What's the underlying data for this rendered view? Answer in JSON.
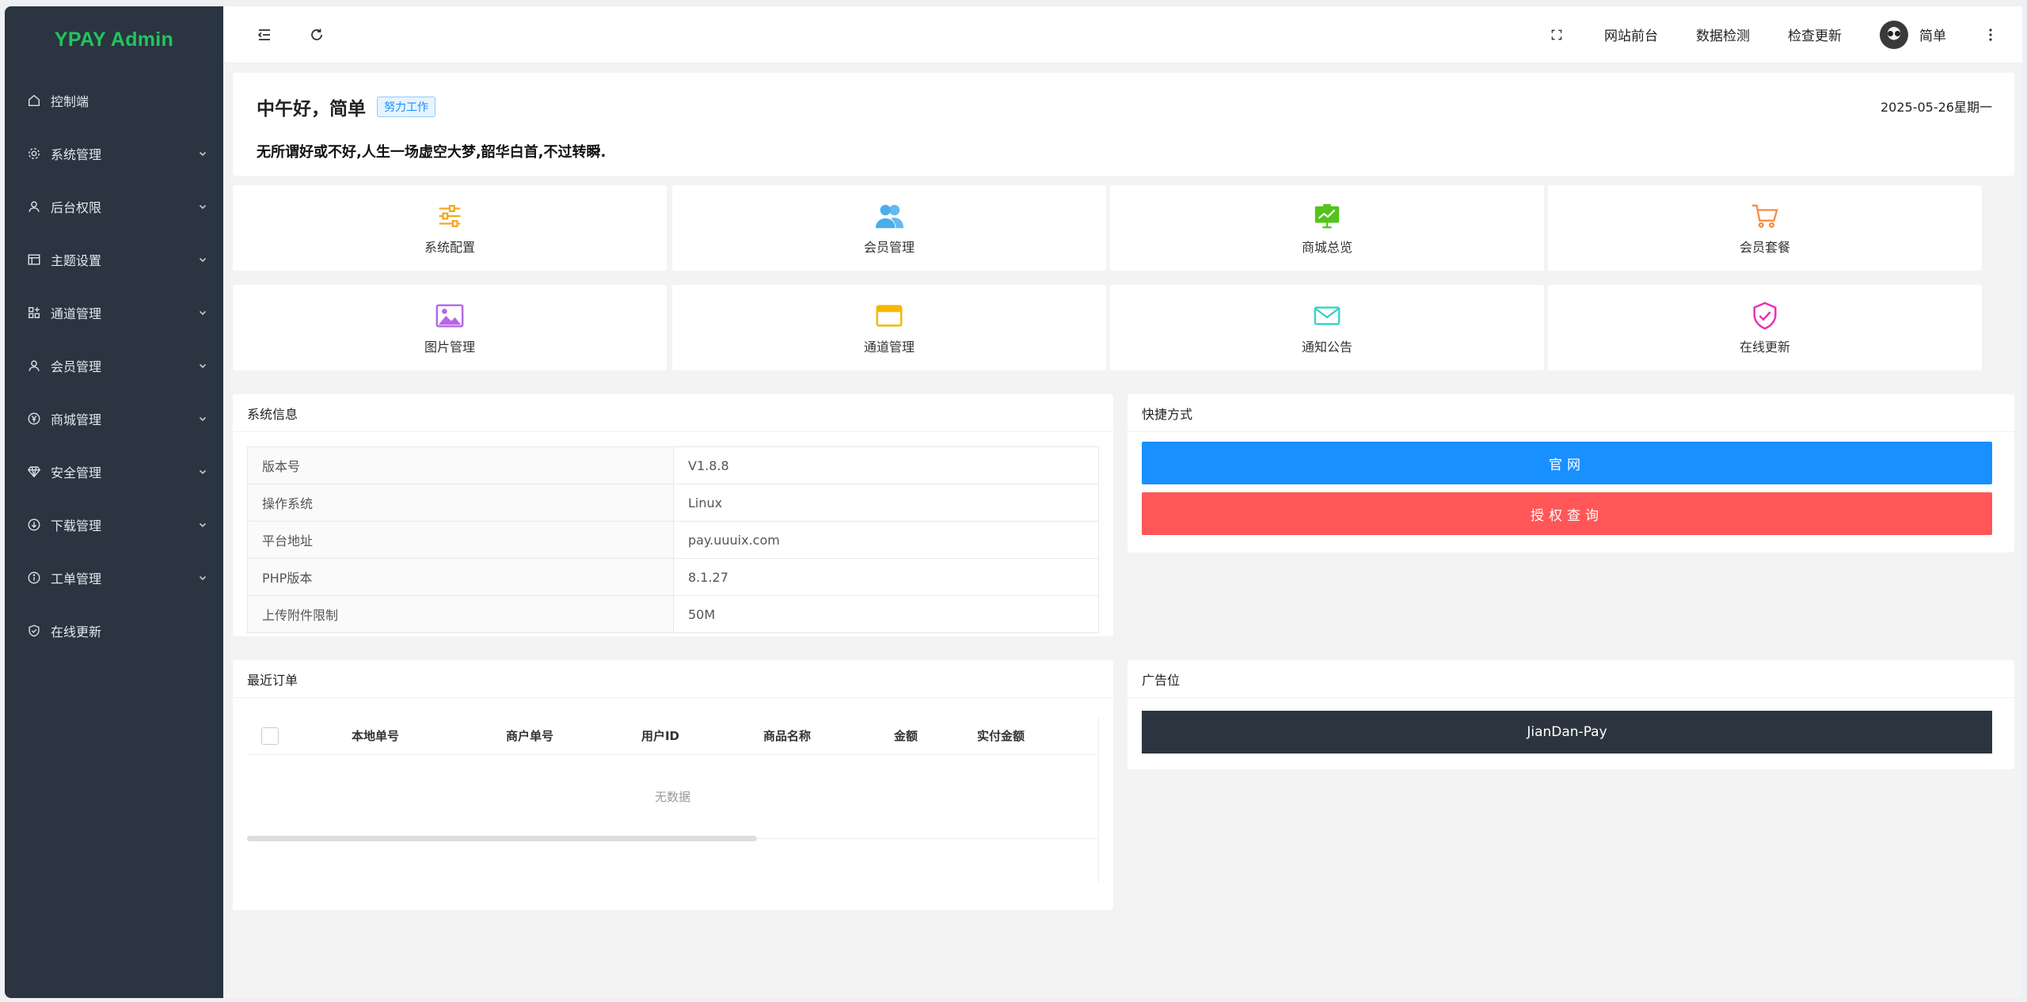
{
  "brand": "YPAY Admin",
  "sidebar": {
    "items": [
      {
        "label": "控制端",
        "icon": "home-icon",
        "expandable": false
      },
      {
        "label": "系统管理",
        "icon": "gear-icon",
        "expandable": true
      },
      {
        "label": "后台权限",
        "icon": "user-icon",
        "expandable": true
      },
      {
        "label": "主题设置",
        "icon": "layout-icon",
        "expandable": true
      },
      {
        "label": "通道管理",
        "icon": "grid-plus-icon",
        "expandable": true
      },
      {
        "label": "会员管理",
        "icon": "user-icon",
        "expandable": true
      },
      {
        "label": "商城管理",
        "icon": "yen-icon",
        "expandable": true
      },
      {
        "label": "安全管理",
        "icon": "diamond-icon",
        "expandable": true
      },
      {
        "label": "下载管理",
        "icon": "download-icon",
        "expandable": true
      },
      {
        "label": "工单管理",
        "icon": "info-icon",
        "expandable": true
      },
      {
        "label": "在线更新",
        "icon": "shield-check-icon",
        "expandable": false
      }
    ]
  },
  "topbar": {
    "links": [
      "网站前台",
      "数据检测",
      "检查更新"
    ],
    "username": "简单"
  },
  "welcome": {
    "greeting": "中午好，简单",
    "badge": "努力工作",
    "date": "2025-05-26星期一",
    "motto": "无所谓好或不好,人生一场虚空大梦,韶华白首,不过转瞬."
  },
  "shortcuts": [
    {
      "label": "系统配置",
      "icon": "sliders-icon",
      "color": "#f5a623"
    },
    {
      "label": "会员管理",
      "icon": "users-icon",
      "color": "#4aaeea"
    },
    {
      "label": "商城总览",
      "icon": "chart-board-icon",
      "color": "#52c41a"
    },
    {
      "label": "会员套餐",
      "icon": "cart-icon",
      "color": "#fa8c3b"
    },
    {
      "label": "图片管理",
      "icon": "image-icon",
      "color": "#b566e6"
    },
    {
      "label": "通道管理",
      "icon": "card-icon",
      "color": "#f5b800"
    },
    {
      "label": "通知公告",
      "icon": "mail-icon",
      "color": "#36cfc9"
    },
    {
      "label": "在线更新",
      "icon": "shield-check-icon",
      "color": "#eb2fb4"
    }
  ],
  "system_info": {
    "title": "系统信息",
    "rows": [
      {
        "key": "版本号",
        "value": "V1.8.8"
      },
      {
        "key": "操作系统",
        "value": "Linux"
      },
      {
        "key": "平台地址",
        "value": "pay.uuuix.com"
      },
      {
        "key": "PHP版本",
        "value": "8.1.27"
      },
      {
        "key": "上传附件限制",
        "value": "50M"
      }
    ]
  },
  "quick": {
    "title": "快捷方式",
    "official": "官网",
    "license": "授权查询"
  },
  "orders": {
    "title": "最近订单",
    "columns": [
      "本地单号",
      "商户单号",
      "用户ID",
      "商品名称",
      "金额",
      "实付金额"
    ],
    "empty": "无数据"
  },
  "ad": {
    "title": "广告位",
    "button": "JianDan-Pay"
  }
}
